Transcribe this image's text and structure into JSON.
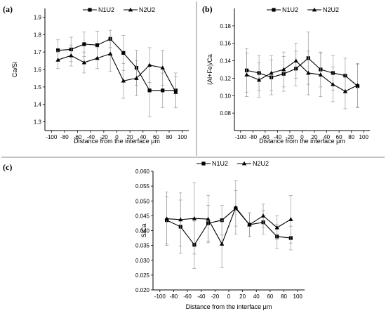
{
  "chart_data": [
    {
      "panel": "(a)",
      "type": "line",
      "xlabel": "Distance from the interface μm",
      "ylabel": "Ca/Si",
      "xlim": [
        -110,
        110
      ],
      "ylim": [
        1.25,
        1.95
      ],
      "xticks": [
        -100,
        -80,
        -60,
        -40,
        -20,
        0,
        20,
        40,
        60,
        80,
        100
      ],
      "yticks": [
        1.3,
        1.4,
        1.5,
        1.6,
        1.7,
        1.8,
        1.9
      ],
      "y_tick_decimals": 1,
      "legend": "top-center",
      "series": [
        {
          "name": "N1U2",
          "marker": "square",
          "x": [
            -90,
            -70,
            -50,
            -30,
            -10,
            10,
            30,
            50,
            70,
            90
          ],
          "y": [
            1.71,
            1.715,
            1.745,
            1.74,
            1.775,
            1.695,
            1.61,
            1.48,
            1.48,
            1.48
          ],
          "err": [
            0.06,
            0.07,
            0.07,
            0.08,
            0.05,
            0.1,
            0.1,
            0.15,
            0.1,
            0.1
          ]
        },
        {
          "name": "N2U2",
          "marker": "triangle",
          "x": [
            -90,
            -70,
            -50,
            -30,
            -10,
            10,
            30,
            50,
            70,
            90
          ],
          "y": [
            1.655,
            1.68,
            1.64,
            1.665,
            1.69,
            1.535,
            1.55,
            1.625,
            1.61,
            1.47
          ],
          "err": [
            0.05,
            0.06,
            0.06,
            0.06,
            0.1,
            0.1,
            0.1,
            0.1,
            0.1,
            0.09
          ]
        }
      ]
    },
    {
      "panel": "(b)",
      "type": "line",
      "xlabel": "Distance from the interface μm",
      "ylabel": "(Al+Fe)/Ca",
      "xlim": [
        -110,
        110
      ],
      "ylim": [
        0.06,
        0.2
      ],
      "xticks": [
        -100,
        -80,
        -60,
        -40,
        -20,
        0,
        20,
        40,
        60,
        80,
        100
      ],
      "yticks": [
        0.08,
        0.1,
        0.12,
        0.14,
        0.16,
        0.18
      ],
      "y_tick_decimals": 2,
      "legend": "top-center",
      "series": [
        {
          "name": "N1U2",
          "marker": "square",
          "x": [
            -90,
            -70,
            -50,
            -30,
            -10,
            10,
            30,
            50,
            70,
            90
          ],
          "y": [
            0.129,
            0.126,
            0.121,
            0.125,
            0.131,
            0.143,
            0.13,
            0.126,
            0.123,
            0.111
          ],
          "err": [
            0.025,
            0.02,
            0.02,
            0.02,
            0.02,
            0.03,
            0.02,
            0.02,
            0.02,
            0.025
          ]
        },
        {
          "name": "N2U2",
          "marker": "triangle",
          "x": [
            -90,
            -70,
            -50,
            -30,
            -10,
            10,
            30,
            50,
            70,
            90
          ],
          "y": [
            0.124,
            0.118,
            0.126,
            0.13,
            0.14,
            0.126,
            0.124,
            0.113,
            0.105,
            0.112
          ],
          "err": [
            0.025,
            0.02,
            0.02,
            0.02,
            0.02,
            0.025,
            0.025,
            0.02,
            0.02,
            0.025
          ]
        }
      ]
    },
    {
      "panel": "(c)",
      "type": "line",
      "xlabel": "Distance from the interface μm",
      "ylabel": "S/Ca",
      "xlim": [
        -110,
        110
      ],
      "ylim": [
        0.02,
        0.06
      ],
      "xticks": [
        -100,
        -80,
        -60,
        -40,
        -20,
        0,
        20,
        40,
        60,
        80,
        100
      ],
      "yticks": [
        0.02,
        0.025,
        0.03,
        0.035,
        0.04,
        0.045,
        0.05,
        0.055,
        0.06
      ],
      "y_tick_decimals": 3,
      "legend": "top-center",
      "series": [
        {
          "name": "N1U2",
          "marker": "square",
          "x": [
            -90,
            -70,
            -50,
            -30,
            -10,
            10,
            30,
            50,
            70,
            90
          ],
          "y": [
            0.0435,
            0.0413,
            0.0352,
            0.0425,
            0.0435,
            0.0475,
            0.042,
            0.0428,
            0.038,
            0.0375
          ],
          "err": [
            0.008,
            0.009,
            0.008,
            0.006,
            0.005,
            0.006,
            0.004,
            0.004,
            0.004,
            0.004
          ]
        },
        {
          "name": "N2U2",
          "marker": "triangle",
          "x": [
            -90,
            -70,
            -50,
            -30,
            -10,
            10,
            30,
            50,
            70,
            90
          ],
          "y": [
            0.044,
            0.0437,
            0.0441,
            0.0439,
            0.0355,
            0.0478,
            0.042,
            0.045,
            0.041,
            0.0438
          ],
          "err": [
            0.009,
            0.009,
            0.012,
            0.008,
            0.008,
            0.009,
            0.004,
            0.004,
            0.004,
            0.008
          ]
        }
      ]
    }
  ]
}
